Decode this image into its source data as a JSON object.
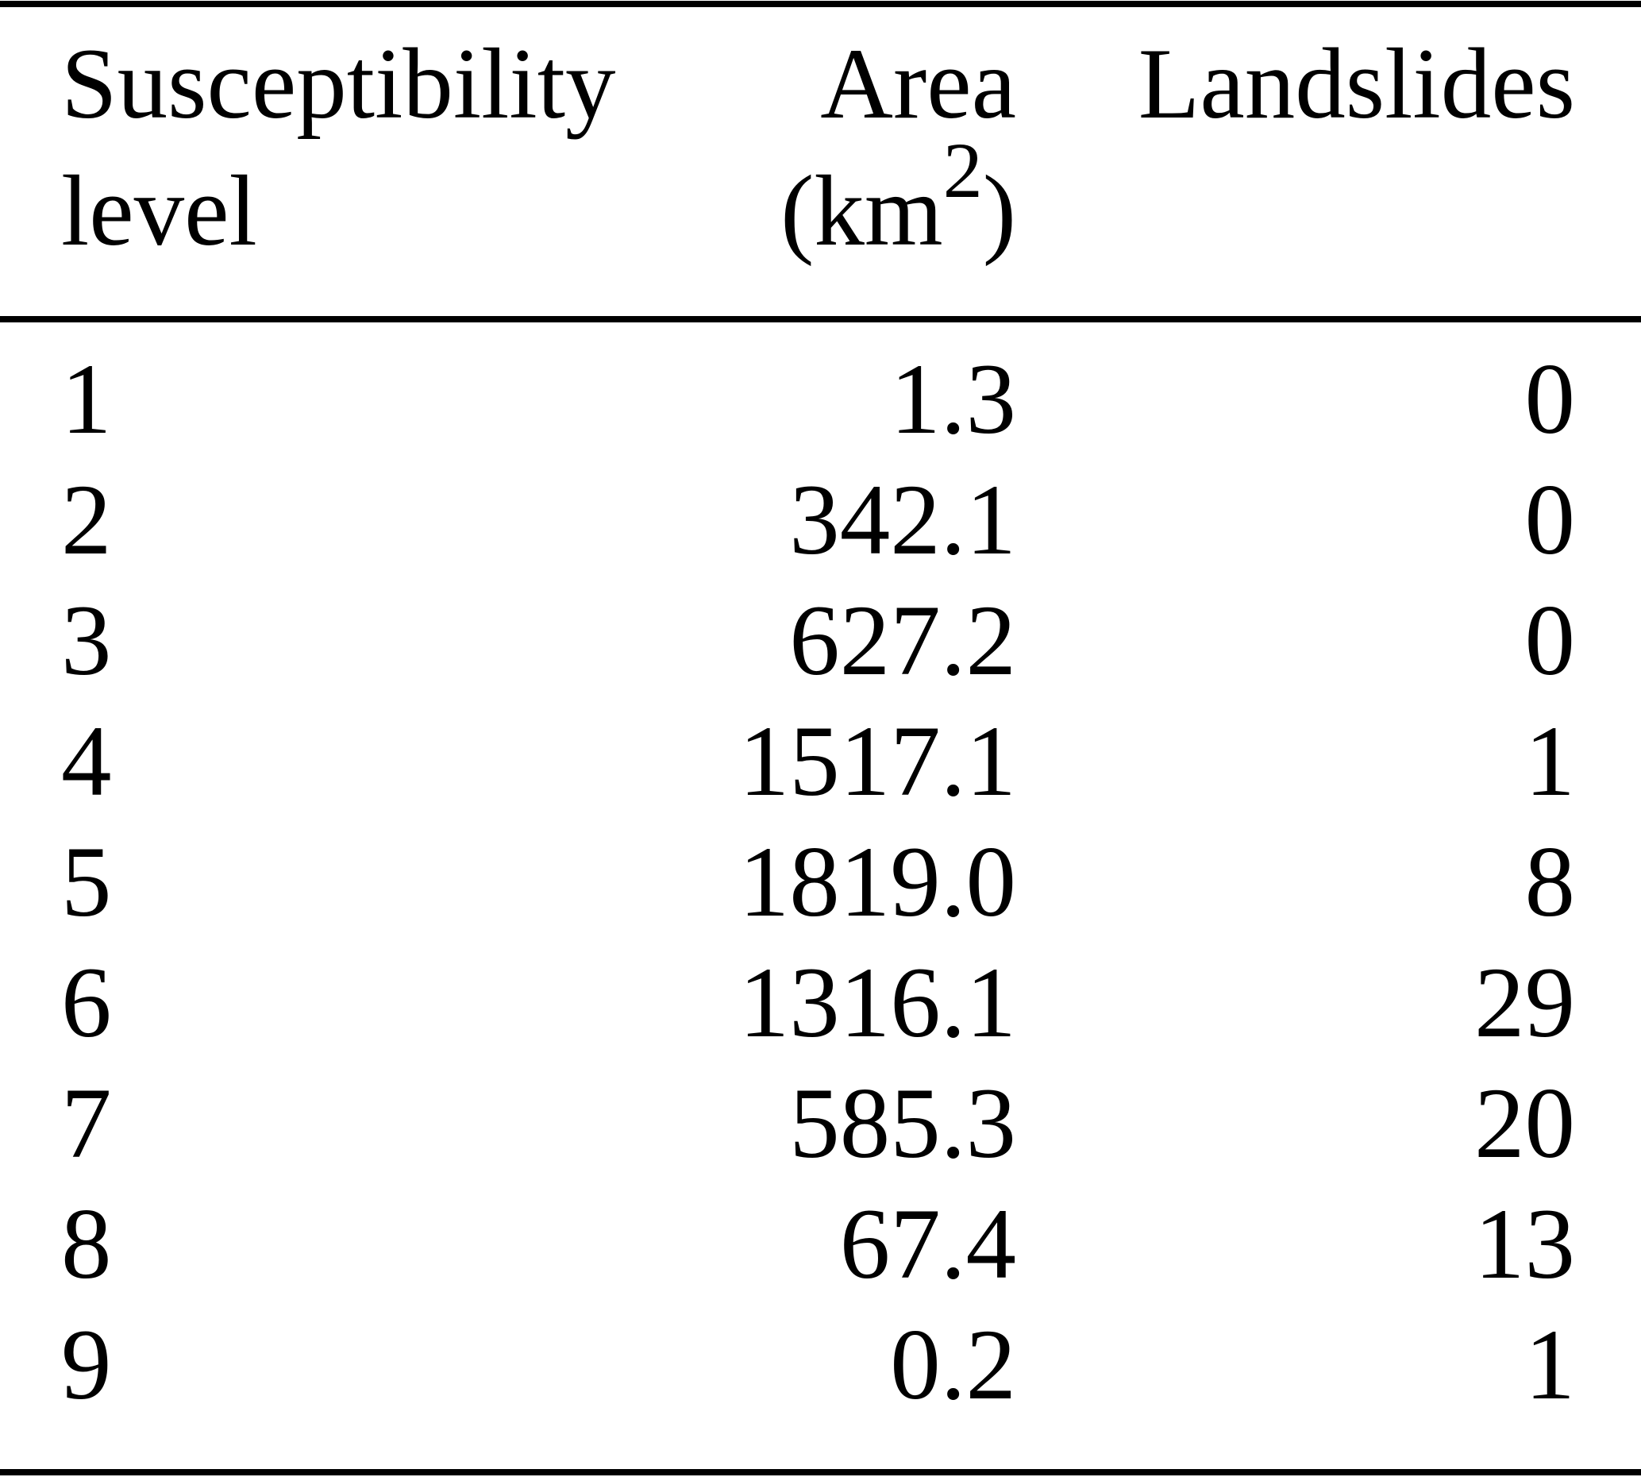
{
  "colors": {
    "text": "#000000",
    "background": "#ffffff",
    "rule": "#000000"
  },
  "header": {
    "col1": {
      "line1": "Susceptibility",
      "line2": "level"
    },
    "col2": {
      "line1": "Area",
      "unit_open": "(km",
      "unit_sup": "2",
      "unit_close": ")"
    },
    "col3": {
      "line1": "Landslides"
    }
  },
  "rows": [
    {
      "level": "1",
      "area": "1.3",
      "landslides": "0"
    },
    {
      "level": "2",
      "area": "342.1",
      "landslides": "0"
    },
    {
      "level": "3",
      "area": "627.2",
      "landslides": "0"
    },
    {
      "level": "4",
      "area": "1517.1",
      "landslides": "1"
    },
    {
      "level": "5",
      "area": "1819.0",
      "landslides": "8"
    },
    {
      "level": "6",
      "area": "1316.1",
      "landslides": "29"
    },
    {
      "level": "7",
      "area": "585.3",
      "landslides": "20"
    },
    {
      "level": "8",
      "area": "67.4",
      "landslides": "13"
    },
    {
      "level": "9",
      "area": "0.2",
      "landslides": "1"
    }
  ]
}
